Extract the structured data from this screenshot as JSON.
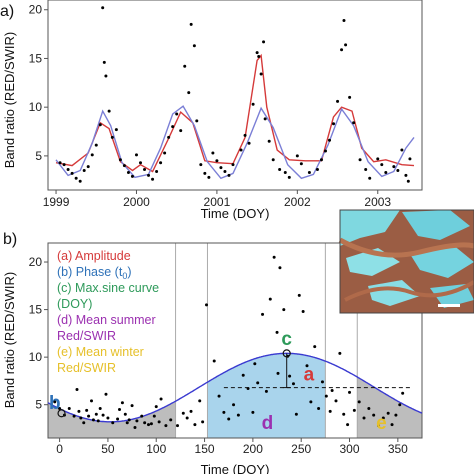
{
  "chart_data": [
    {
      "panel_label": "a)",
      "type": "scatter",
      "xlabel": "Time (DOY)",
      "ylabel": "Band ratio (RED/SWIR)",
      "xlim": [
        1998.9,
        2003.55
      ],
      "ylim": [
        1.5,
        21
      ],
      "x_ticks": [
        "1999",
        "2000",
        "2001",
        "2002",
        "2003"
      ],
      "x_tick_values": [
        1999,
        2000,
        2001,
        2002,
        2003
      ],
      "y_ticks": [
        "5",
        "10",
        "15",
        "20"
      ],
      "y_tick_values": [
        5,
        10,
        15,
        20
      ],
      "points": [
        [
          1999.05,
          4.3
        ],
        [
          1999.1,
          4.1
        ],
        [
          1999.15,
          3.6
        ],
        [
          1999.2,
          3.2
        ],
        [
          1999.25,
          2.7
        ],
        [
          1999.3,
          2.4
        ],
        [
          1999.35,
          3.5
        ],
        [
          1999.4,
          3.9
        ],
        [
          1999.45,
          5.1
        ],
        [
          1999.5,
          6.1
        ],
        [
          1999.55,
          8.2
        ],
        [
          1999.58,
          20.2
        ],
        [
          1999.6,
          14.6
        ],
        [
          1999.62,
          13.2
        ],
        [
          1999.66,
          9.6
        ],
        [
          1999.7,
          6.9
        ],
        [
          1999.75,
          7.7
        ],
        [
          1999.8,
          4.6
        ],
        [
          1999.85,
          4.0
        ],
        [
          1999.9,
          3.3
        ],
        [
          1999.95,
          2.9
        ],
        [
          2000.0,
          5.1
        ],
        [
          2000.05,
          4.3
        ],
        [
          2000.1,
          3.6
        ],
        [
          2000.15,
          3.0
        ],
        [
          2000.2,
          2.6
        ],
        [
          2000.25,
          3.4
        ],
        [
          2000.3,
          4.3
        ],
        [
          2000.35,
          5.3
        ],
        [
          2000.4,
          6.9
        ],
        [
          2000.45,
          8.0
        ],
        [
          2000.5,
          9.3
        ],
        [
          2000.55,
          7.6
        ],
        [
          2000.6,
          14.2
        ],
        [
          2000.65,
          11.5
        ],
        [
          2000.68,
          18.5
        ],
        [
          2000.72,
          16.3
        ],
        [
          2000.75,
          8.6
        ],
        [
          2000.8,
          4.1
        ],
        [
          2000.85,
          3.2
        ],
        [
          2000.9,
          2.8
        ],
        [
          2000.95,
          5.3
        ],
        [
          2001.0,
          4.5
        ],
        [
          2001.05,
          3.8
        ],
        [
          2001.1,
          3.4
        ],
        [
          2001.15,
          3.0
        ],
        [
          2001.2,
          4.1
        ],
        [
          2001.3,
          5.6
        ],
        [
          2001.35,
          7.1
        ],
        [
          2001.4,
          6.3
        ],
        [
          2001.45,
          10.3
        ],
        [
          2001.5,
          15.6
        ],
        [
          2001.52,
          15.2
        ],
        [
          2001.55,
          13.4
        ],
        [
          2001.58,
          16.7
        ],
        [
          2001.6,
          8.8
        ],
        [
          2001.65,
          6.5
        ],
        [
          2001.7,
          4.6
        ],
        [
          2001.78,
          3.6
        ],
        [
          2001.85,
          3.3
        ],
        [
          2001.9,
          2.8
        ],
        [
          2002.0,
          5.0
        ],
        [
          2002.05,
          4.2
        ],
        [
          2002.15,
          3.3
        ],
        [
          2002.25,
          3.6
        ],
        [
          2002.3,
          4.6
        ],
        [
          2002.35,
          5.5
        ],
        [
          2002.4,
          6.6
        ],
        [
          2002.45,
          8.3
        ],
        [
          2002.5,
          10.6
        ],
        [
          2002.55,
          15.9
        ],
        [
          2002.58,
          18.9
        ],
        [
          2002.6,
          16.4
        ],
        [
          2002.65,
          11.0
        ],
        [
          2002.7,
          8.4
        ],
        [
          2002.78,
          4.6
        ],
        [
          2002.85,
          3.6
        ],
        [
          2002.9,
          2.7
        ],
        [
          2003.0,
          4.7
        ],
        [
          2003.05,
          4.1
        ],
        [
          2003.1,
          3.3
        ],
        [
          2003.2,
          3.9
        ],
        [
          2003.25,
          3.5
        ],
        [
          2003.3,
          5.6
        ],
        [
          2003.35,
          3.0
        ],
        [
          2003.38,
          2.4
        ],
        [
          2003.4,
          4.7
        ]
      ],
      "series": [
        {
          "color": "#d53a3a",
          "line": [
            [
              1999.0,
              4.3
            ],
            [
              1999.2,
              4.0
            ],
            [
              1999.4,
              5.3
            ],
            [
              1999.55,
              8.4
            ],
            [
              1999.66,
              7.8
            ],
            [
              1999.8,
              4.4
            ],
            [
              1999.95,
              3.5
            ],
            [
              2000.05,
              4.1
            ],
            [
              2000.2,
              3.4
            ],
            [
              2000.4,
              6.8
            ],
            [
              2000.55,
              9.5
            ],
            [
              2000.7,
              8.4
            ],
            [
              2000.85,
              4.5
            ],
            [
              2001.0,
              4.3
            ],
            [
              2001.2,
              4.2
            ],
            [
              2001.35,
              6.9
            ],
            [
              2001.5,
              14.8
            ],
            [
              2001.55,
              15.3
            ],
            [
              2001.62,
              10.0
            ],
            [
              2001.75,
              5.6
            ],
            [
              2001.9,
              4.6
            ],
            [
              2002.1,
              4.5
            ],
            [
              2002.3,
              4.5
            ],
            [
              2002.45,
              9.0
            ],
            [
              2002.55,
              10.0
            ],
            [
              2002.68,
              9.6
            ],
            [
              2002.8,
              5.8
            ],
            [
              2002.95,
              4.4
            ],
            [
              2003.1,
              4.6
            ],
            [
              2003.3,
              4.1
            ],
            [
              2003.45,
              4.0
            ]
          ]
        },
        {
          "color": "#7b7fd6",
          "line": [
            [
              1999.0,
              4.6
            ],
            [
              1999.15,
              3.0
            ],
            [
              1999.3,
              3.5
            ],
            [
              1999.45,
              6.3
            ],
            [
              1999.58,
              9.6
            ],
            [
              1999.68,
              8.1
            ],
            [
              1999.82,
              4.3
            ],
            [
              1999.98,
              2.8
            ],
            [
              2000.15,
              3.1
            ],
            [
              2000.3,
              5.8
            ],
            [
              2000.45,
              9.3
            ],
            [
              2000.58,
              10.1
            ],
            [
              2000.72,
              8.1
            ],
            [
              2000.88,
              4.4
            ],
            [
              2001.05,
              2.7
            ],
            [
              2001.2,
              3.2
            ],
            [
              2001.38,
              6.4
            ],
            [
              2001.55,
              9.9
            ],
            [
              2001.7,
              7.9
            ],
            [
              2001.88,
              4.1
            ],
            [
              2002.05,
              2.7
            ],
            [
              2002.2,
              3.1
            ],
            [
              2002.38,
              6.1
            ],
            [
              2002.55,
              9.8
            ],
            [
              2002.7,
              8.1
            ],
            [
              2002.88,
              4.4
            ],
            [
              2003.05,
              2.9
            ],
            [
              2003.2,
              3.4
            ],
            [
              2003.35,
              5.8
            ],
            [
              2003.45,
              6.9
            ]
          ]
        }
      ]
    },
    {
      "panel_label": "b)",
      "type": "scatter",
      "xlabel": "Time (DOY)",
      "ylabel": "Band ratio (RED/SWIR)",
      "xlim": [
        -12,
        375
      ],
      "ylim": [
        1.5,
        22
      ],
      "x_ticks": [
        "0",
        "50",
        "100",
        "150",
        "200",
        "250",
        "300",
        "350"
      ],
      "x_tick_values": [
        0,
        50,
        100,
        150,
        200,
        250,
        300,
        350
      ],
      "y_ticks": [
        "5",
        "10",
        "15",
        "20"
      ],
      "y_tick_values": [
        5,
        10,
        15,
        20
      ],
      "vlines": [
        120,
        153,
        275,
        308
      ],
      "summer_span": [
        153,
        275
      ],
      "winter_spans": [
        [
          -12,
          120
        ],
        [
          308,
          375
        ]
      ],
      "sine": {
        "mean": 6.8,
        "amplitude": 3.6,
        "phase_doy": 235,
        "color": "#3a3ad0"
      },
      "mean_line": 6.8,
      "phase_marker": [
        2,
        4.1
      ],
      "max_marker": [
        235,
        10.4
      ],
      "points": [
        [
          -5,
          5.3
        ],
        [
          0,
          4.6
        ],
        [
          5,
          3.9
        ],
        [
          10,
          4.6
        ],
        [
          15,
          3.8
        ],
        [
          18,
          6.6
        ],
        [
          20,
          4.3
        ],
        [
          22,
          3.6
        ],
        [
          25,
          3.1
        ],
        [
          28,
          4.4
        ],
        [
          30,
          3.8
        ],
        [
          33,
          5.4
        ],
        [
          35,
          3.4
        ],
        [
          38,
          4.0
        ],
        [
          40,
          3.3
        ],
        [
          42,
          4.6
        ],
        [
          45,
          3.9
        ],
        [
          48,
          6.1
        ],
        [
          50,
          3.6
        ],
        [
          55,
          3.1
        ],
        [
          60,
          3.5
        ],
        [
          62,
          4.5
        ],
        [
          65,
          5.2
        ],
        [
          68,
          4.0
        ],
        [
          70,
          3.1
        ],
        [
          72,
          3.4
        ],
        [
          75,
          4.9
        ],
        [
          78,
          2.6
        ],
        [
          80,
          3.3
        ],
        [
          85,
          3.8
        ],
        [
          88,
          3.1
        ],
        [
          92,
          2.9
        ],
        [
          95,
          3.0
        ],
        [
          98,
          3.8
        ],
        [
          100,
          4.8
        ],
        [
          103,
          3.2
        ],
        [
          105,
          5.6
        ],
        [
          110,
          2.8
        ],
        [
          115,
          3.4
        ],
        [
          122,
          2.8
        ],
        [
          128,
          4.1
        ],
        [
          132,
          3.6
        ],
        [
          136,
          4.3
        ],
        [
          140,
          2.9
        ],
        [
          145,
          5.4
        ],
        [
          148,
          3.2
        ],
        [
          152,
          15.5
        ],
        [
          160,
          9.6
        ],
        [
          165,
          5.9
        ],
        [
          170,
          4.2
        ],
        [
          175,
          3.5
        ],
        [
          180,
          5.0
        ],
        [
          185,
          3.9
        ],
        [
          190,
          8.1
        ],
        [
          195,
          6.7
        ],
        [
          200,
          4.2
        ],
        [
          202,
          9.3
        ],
        [
          205,
          7.3
        ],
        [
          210,
          14.5
        ],
        [
          214,
          6.4
        ],
        [
          218,
          16.1
        ],
        [
          222,
          20.5
        ],
        [
          225,
          12.6
        ],
        [
          226,
          8.3
        ],
        [
          228,
          19.4
        ],
        [
          232,
          15.0
        ],
        [
          236,
          10.1
        ],
        [
          238,
          8.0
        ],
        [
          242,
          7.2
        ],
        [
          245,
          4.0
        ],
        [
          248,
          16.5
        ],
        [
          252,
          14.8
        ],
        [
          256,
          9.1
        ],
        [
          260,
          5.3
        ],
        [
          264,
          11.1
        ],
        [
          268,
          4.6
        ],
        [
          272,
          7.4
        ],
        [
          276,
          5.9
        ],
        [
          280,
          4.3
        ],
        [
          282,
          6.5
        ],
        [
          286,
          5.4
        ],
        [
          290,
          10.4
        ],
        [
          294,
          4.0
        ],
        [
          298,
          2.9
        ],
        [
          300,
          6.3
        ],
        [
          305,
          4.4
        ],
        [
          310,
          5.3
        ],
        [
          315,
          3.6
        ],
        [
          320,
          4.6
        ],
        [
          325,
          3.9
        ],
        [
          330,
          2.8
        ],
        [
          335,
          3.6
        ],
        [
          340,
          4.1
        ],
        [
          344,
          2.9
        ],
        [
          348,
          3.9
        ],
        [
          352,
          5.0
        ],
        [
          355,
          6.2
        ]
      ],
      "annotations": [
        {
          "text": "a",
          "color": "#d53a3a",
          "x": 258,
          "y": 8.3
        },
        {
          "text": "b",
          "color": "#2f72b8",
          "x": -5,
          "y": 5.3
        },
        {
          "text": "c",
          "color": "#2e9a5a",
          "x": 235,
          "y": 12.0
        },
        {
          "text": "d",
          "color": "#9b30b0",
          "x": 215,
          "y": 3.2
        },
        {
          "text": "e",
          "color": "#e6c02a",
          "x": 333,
          "y": 3.2
        }
      ],
      "legend": [
        {
          "text": "(a) Amplitude",
          "color": "#d53a3a"
        },
        {
          "text": "(b) Phase (t",
          "sub": "0",
          "tail": ")",
          "color": "#2f72b8"
        },
        {
          "text": "(c) Max.sine curve",
          "color": "#2e9a5a"
        },
        {
          "text": "(DOY)",
          "color": "#2e9a5a"
        },
        {
          "text": "(d) Mean summer",
          "color": "#9b30b0"
        },
        {
          "text": "Red/SWIR",
          "color": "#9b30b0"
        },
        {
          "text": "(e) Mean winter",
          "color": "#e6c02a"
        },
        {
          "text": "Red/SWIR",
          "color": "#e6c02a"
        }
      ]
    }
  ],
  "colors": {
    "summer_fill": "#a9d4ec",
    "winter_fill": "#bdbdbd",
    "axis": "#555555",
    "points": "#000000"
  }
}
